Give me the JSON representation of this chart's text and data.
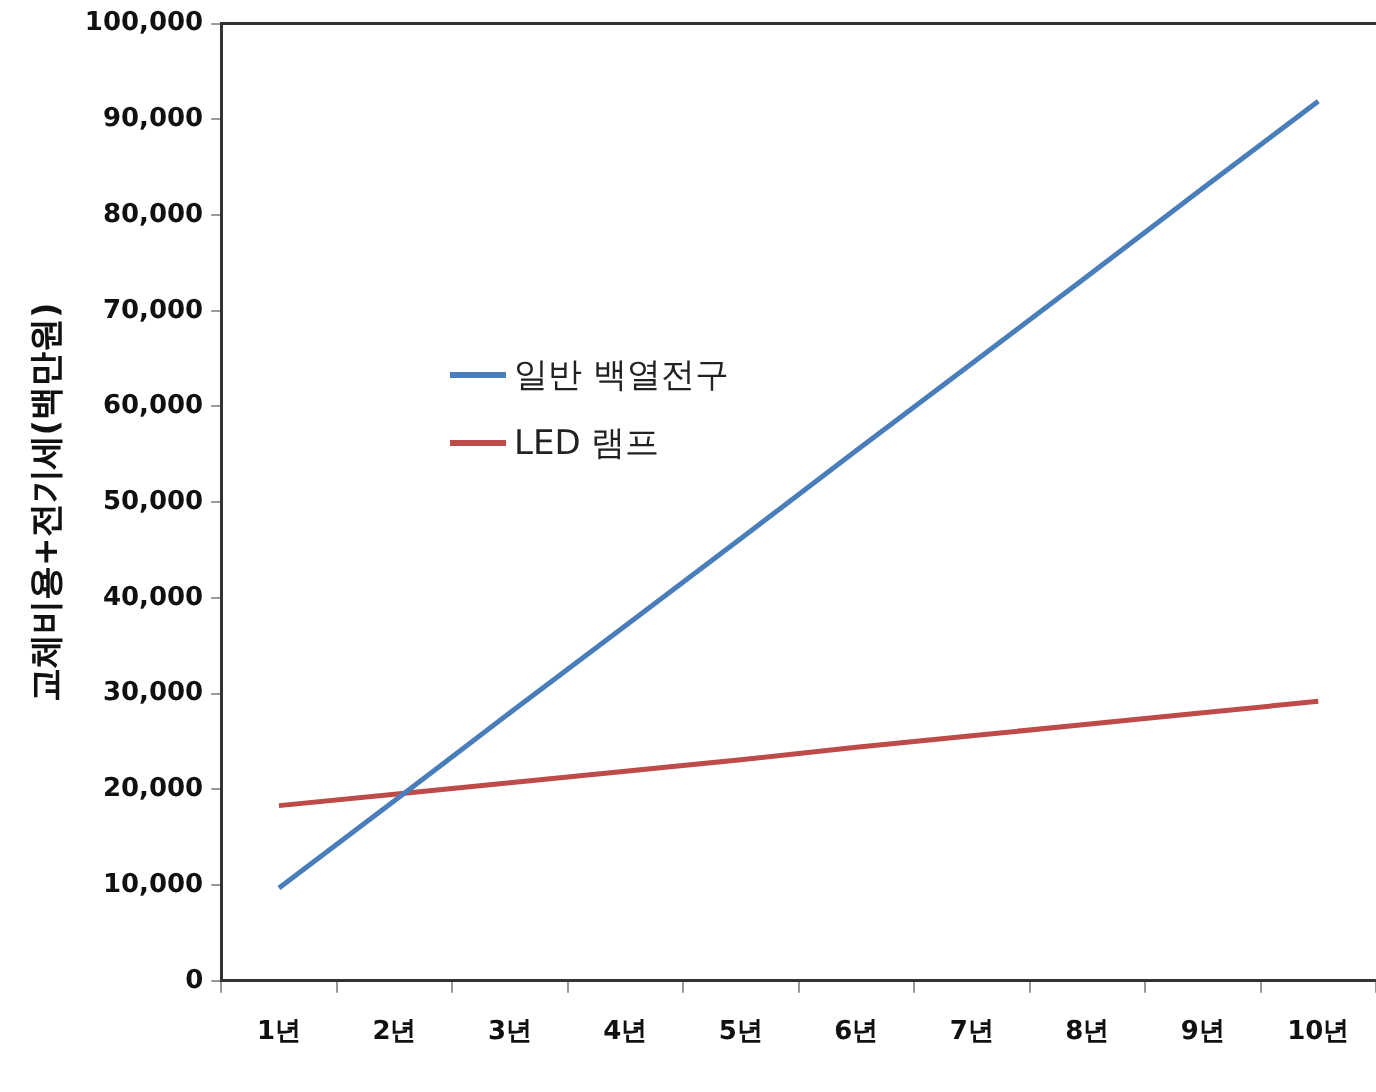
{
  "chart_data": {
    "type": "line",
    "ylabel": "교체비용+전기세(백만원)",
    "categories": [
      "1년",
      "2년",
      "3년",
      "4년",
      "5년",
      "6년",
      "7년",
      "8년",
      "9년",
      "10년"
    ],
    "series": [
      {
        "name": "일반 백열전구",
        "color": "#4a7ebb",
        "values": [
          9700,
          18800,
          28000,
          37100,
          46200,
          55400,
          64500,
          73600,
          82800,
          91900
        ]
      },
      {
        "name": "LED 램프",
        "color": "#be4b48",
        "values": [
          18300,
          19500,
          20700,
          21900,
          23100,
          24400,
          25600,
          26800,
          28000,
          29200
        ]
      }
    ],
    "ylim": [
      0,
      100000
    ],
    "yticks": [
      0,
      {
        "value": 10000,
        "label": "10,000"
      },
      {
        "value": 20000,
        "label": "20,000"
      },
      {
        "value": 30000,
        "label": "30,000"
      },
      {
        "value": 40000,
        "label": "40,000"
      },
      {
        "value": 50000,
        "label": "50,000"
      },
      {
        "value": 60000,
        "label": "60,000"
      },
      {
        "value": 70000,
        "label": "70,000"
      },
      {
        "value": 80000,
        "label": "80,000"
      },
      {
        "value": 90000,
        "label": "90,000"
      },
      {
        "value": 100000,
        "label": "100,000"
      }
    ],
    "grid": false,
    "legend": "left",
    "marker": "none",
    "line_style": "solid"
  }
}
